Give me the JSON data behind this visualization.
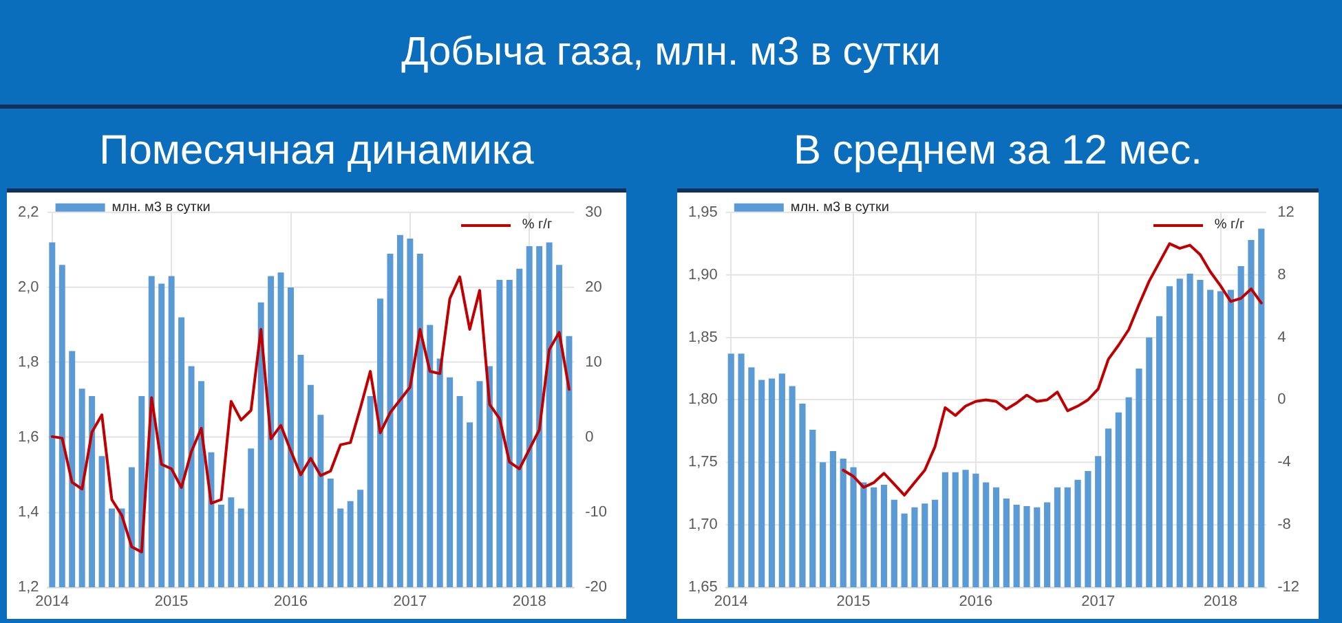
{
  "chart_data": [
    {
      "type": "bar",
      "title": "Добыча газа, млн. м3 в сутки",
      "subtitle": "Помесячная динамика",
      "categories": [
        "2014",
        null,
        null,
        null,
        null,
        null,
        null,
        null,
        null,
        null,
        null,
        null,
        "2015",
        null,
        null,
        null,
        null,
        null,
        null,
        null,
        null,
        null,
        null,
        null,
        "2016",
        null,
        null,
        null,
        null,
        null,
        null,
        null,
        null,
        null,
        null,
        null,
        "2017",
        null,
        null,
        null,
        null,
        null,
        null,
        null,
        null,
        null,
        null,
        null,
        "2018",
        null,
        null,
        null,
        null
      ],
      "series": [
        {
          "name": "млн. м3 в сутки",
          "color": "#5b9bd5",
          "values": [
            2.12,
            2.06,
            1.83,
            1.73,
            1.71,
            1.55,
            1.41,
            1.41,
            1.52,
            1.71,
            2.03,
            2.01,
            2.03,
            1.92,
            1.79,
            1.75,
            1.56,
            1.42,
            1.44,
            1.41,
            1.57,
            1.96,
            2.03,
            2.04,
            2.0,
            1.82,
            1.74,
            1.66,
            1.49,
            1.41,
            1.43,
            1.46,
            1.71,
            1.97,
            2.09,
            2.14,
            2.13,
            2.09,
            1.9,
            1.81,
            1.76,
            1.71,
            1.64,
            1.75,
            1.79,
            2.02,
            2.02,
            2.05,
            2.11,
            2.11,
            2.12,
            2.06,
            1.87
          ]
        },
        {
          "name": "% г/г",
          "type": "line",
          "axis": "y2",
          "color": "#c00000",
          "values": [
            0.1,
            -0.1,
            -6.0,
            -6.9,
            0.7,
            3.0,
            -8.3,
            -10.4,
            -14.6,
            -15.3,
            5.3,
            -3.6,
            -4.2,
            -6.7,
            -1.9,
            1.2,
            -8.8,
            -8.3,
            4.8,
            2.3,
            3.6,
            14.4,
            -0.2,
            1.6,
            -1.8,
            -5.0,
            -2.8,
            -5.1,
            -4.5,
            -1.0,
            -0.7,
            3.9,
            8.8,
            0.6,
            3.3,
            5.0,
            6.7,
            14.4,
            8.8,
            8.5,
            18.5,
            21.4,
            14.4,
            19.6,
            4.4,
            2.5,
            -3.3,
            -4.2,
            -1.6,
            1.0,
            11.7,
            14.0,
            6.4
          ]
        }
      ],
      "ylim": [
        1.2,
        2.2
      ],
      "yticks": [
        {
          "value": 1.2,
          "label": "1,2"
        },
        {
          "value": 1.4,
          "label": "1,4"
        },
        {
          "value": 1.6,
          "label": "1,6"
        },
        {
          "value": 1.8,
          "label": "1,8"
        },
        {
          "value": 2.0,
          "label": "2,0"
        },
        {
          "value": 2.2,
          "label": "2,2"
        }
      ],
      "y2lim": [
        -20,
        30
      ],
      "y2ticks": [
        -20,
        -10,
        0,
        10,
        20,
        30
      ],
      "grid": true,
      "legend": "top",
      "marker": "none",
      "line_style": "solid"
    },
    {
      "type": "bar",
      "subtitle": "В среднем за 12 мес.",
      "categories": [
        "2014",
        null,
        null,
        null,
        null,
        null,
        null,
        null,
        null,
        null,
        null,
        null,
        "2015",
        null,
        null,
        null,
        null,
        null,
        null,
        null,
        null,
        null,
        null,
        null,
        "2016",
        null,
        null,
        null,
        null,
        null,
        null,
        null,
        null,
        null,
        null,
        null,
        "2017",
        null,
        null,
        null,
        null,
        null,
        null,
        null,
        null,
        null,
        null,
        null,
        "2018",
        null,
        null,
        null,
        null
      ],
      "series": [
        {
          "name": "млн. м3 в сутки",
          "color": "#5b9bd5",
          "values": [
            1.837,
            1.837,
            1.826,
            1.816,
            1.817,
            1.821,
            1.811,
            1.797,
            1.776,
            1.75,
            1.759,
            1.753,
            1.746,
            1.734,
            1.73,
            1.732,
            1.72,
            1.709,
            1.714,
            1.717,
            1.72,
            1.742,
            1.742,
            1.744,
            1.741,
            1.734,
            1.73,
            1.721,
            1.716,
            1.715,
            1.714,
            1.718,
            1.73,
            1.73,
            1.736,
            1.743,
            1.755,
            1.777,
            1.79,
            1.802,
            1.825,
            1.85,
            1.867,
            1.891,
            1.897,
            1.901,
            1.896,
            1.888,
            1.887,
            1.888,
            1.907,
            1.928,
            1.937
          ]
        },
        {
          "name": "% г/г",
          "type": "line",
          "axis": "y2",
          "color": "#c00000",
          "values": [
            null,
            null,
            null,
            null,
            null,
            null,
            null,
            null,
            null,
            null,
            null,
            -4.5,
            -4.9,
            -5.6,
            -5.3,
            -4.7,
            -5.4,
            -6.1,
            -5.3,
            -4.5,
            -3.0,
            -0.5,
            -1.0,
            -0.4,
            -0.1,
            0.0,
            -0.1,
            -0.6,
            -0.2,
            0.3,
            -0.1,
            0.0,
            0.5,
            -0.7,
            -0.4,
            0.0,
            0.7,
            2.6,
            3.5,
            4.5,
            6.1,
            7.6,
            8.8,
            10.0,
            9.7,
            9.9,
            9.3,
            8.2,
            7.3,
            6.3,
            6.5,
            7.1,
            6.2
          ]
        }
      ],
      "ylim": [
        1.65,
        1.95
      ],
      "yticks": [
        {
          "value": 1.65,
          "label": "1,65"
        },
        {
          "value": 1.7,
          "label": "1,70"
        },
        {
          "value": 1.75,
          "label": "1,75"
        },
        {
          "value": 1.8,
          "label": "1,80"
        },
        {
          "value": 1.85,
          "label": "1,85"
        },
        {
          "value": 1.9,
          "label": "1,90"
        },
        {
          "value": 1.95,
          "label": "1,95"
        }
      ],
      "y2lim": [
        -12,
        12
      ],
      "y2ticks": [
        -12,
        -8,
        -4,
        0,
        4,
        8,
        12
      ],
      "grid": true,
      "legend": "top",
      "marker": "none",
      "line_style": "solid"
    }
  ]
}
